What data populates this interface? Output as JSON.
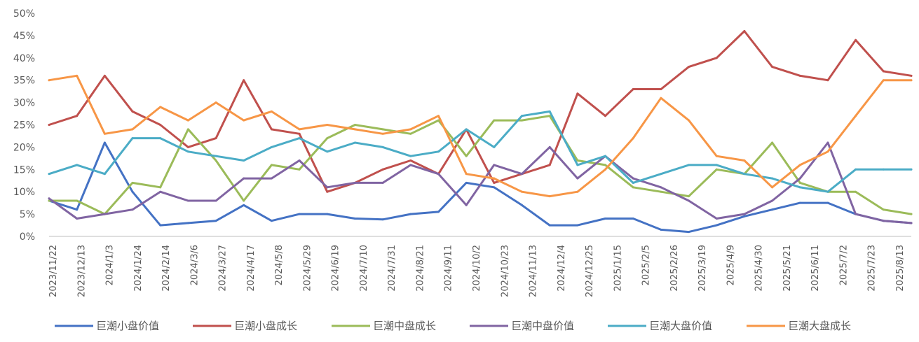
{
  "chart_data": {
    "type": "line",
    "title": "",
    "xlabel": "",
    "ylabel": "",
    "ylim": [
      0,
      50
    ],
    "y_ticks": [
      "0%",
      "5%",
      "10%",
      "15%",
      "20%",
      "25%",
      "30%",
      "35%",
      "40%",
      "45%",
      "50%"
    ],
    "grid": false,
    "legend_position": "bottom",
    "x_tick_labels": [
      "2023/11/22",
      "2023/12/13",
      "2024/1/3",
      "2024/1/24",
      "2024/2/14",
      "2024/3/6",
      "2024/3/27",
      "2024/4/17",
      "2024/5/8",
      "2024/5/29",
      "2024/6/19",
      "2024/7/10",
      "2024/7/31",
      "2024/8/21",
      "2024/9/11",
      "2024/10/2",
      "2024/10/23",
      "2024/11/13",
      "2024/12/4",
      "2024/12/25",
      "2025/1/15",
      "2025/2/5",
      "2025/2/26",
      "2025/3/19",
      "2025/4/9",
      "2025/4/30",
      "2025/5/21",
      "2025/6/11",
      "2025/7/2",
      "2025/7/23",
      "2025/8/13"
    ],
    "x": [
      "2023/11/22",
      "2023/12/13",
      "2024/1/3",
      "2024/1/24",
      "2024/2/14",
      "2024/3/6",
      "2024/3/27",
      "2024/4/17",
      "2024/5/8",
      "2024/5/29",
      "2024/6/19",
      "2024/7/10",
      "2024/7/31",
      "2024/8/21",
      "2024/9/11",
      "2024/10/2",
      "2024/10/23",
      "2024/11/13",
      "2024/12/4",
      "2024/12/25",
      "2025/1/15",
      "2025/2/5",
      "2025/2/26",
      "2025/3/19",
      "2025/4/9",
      "2025/4/30",
      "2025/5/21",
      "2025/6/11",
      "2025/7/2",
      "2025/7/23",
      "2025/8/13",
      "2025/8/27"
    ],
    "series": [
      {
        "name": "巨潮小盘价值",
        "color": "#4472C4",
        "values": [
          8,
          6,
          21,
          10,
          2.5,
          3,
          3.5,
          7,
          3.5,
          5,
          5,
          4,
          3.8,
          5,
          5.5,
          12,
          11,
          7,
          2.5,
          2.5,
          4,
          4,
          1.5,
          1,
          2.5,
          4.5,
          6,
          7.5,
          7.5,
          5,
          3.5,
          3
        ]
      },
      {
        "name": "巨潮小盘成长",
        "color": "#C0504D",
        "values": [
          25,
          27,
          36,
          28,
          25,
          20,
          22,
          35,
          24,
          23,
          10,
          12,
          15,
          17,
          14,
          24,
          12,
          14,
          16,
          32,
          27,
          33,
          33,
          38,
          40,
          46,
          38,
          36,
          35,
          44,
          37,
          36
        ]
      },
      {
        "name": "巨潮中盘成长",
        "color": "#9BBB59",
        "values": [
          8,
          8,
          5,
          12,
          11,
          24,
          17,
          8,
          16,
          15,
          22,
          25,
          24,
          23,
          26,
          18,
          26,
          26,
          27,
          17,
          16,
          11,
          10,
          9,
          15,
          14,
          21,
          12,
          10,
          10,
          6,
          5
        ]
      },
      {
        "name": "巨潮中盘价值",
        "color": "#8064A2",
        "values": [
          8.5,
          4,
          5,
          6,
          10,
          8,
          8,
          13,
          13,
          17,
          11,
          12,
          12,
          16,
          14,
          7,
          16,
          14,
          20,
          13,
          18,
          13,
          11,
          8,
          4,
          5,
          8,
          13,
          21,
          5,
          3.5,
          3
        ]
      },
      {
        "name": "巨潮大盘价值",
        "color": "#4BACC6",
        "values": [
          14,
          16,
          14,
          22,
          22,
          19,
          18,
          17,
          20,
          22,
          19,
          21,
          20,
          18,
          19,
          24,
          20,
          27,
          28,
          16,
          18,
          12,
          14,
          16,
          16,
          14,
          13,
          11,
          10,
          15,
          15,
          15
        ]
      },
      {
        "name": "巨潮大盘成长",
        "color": "#F79646",
        "values": [
          35,
          36,
          23,
          24,
          29,
          26,
          30,
          26,
          28,
          24,
          25,
          24,
          23,
          24,
          27,
          14,
          13,
          10,
          9,
          10,
          15,
          22,
          31,
          26,
          18,
          17,
          11,
          16,
          19,
          27,
          35,
          35
        ]
      }
    ]
  }
}
